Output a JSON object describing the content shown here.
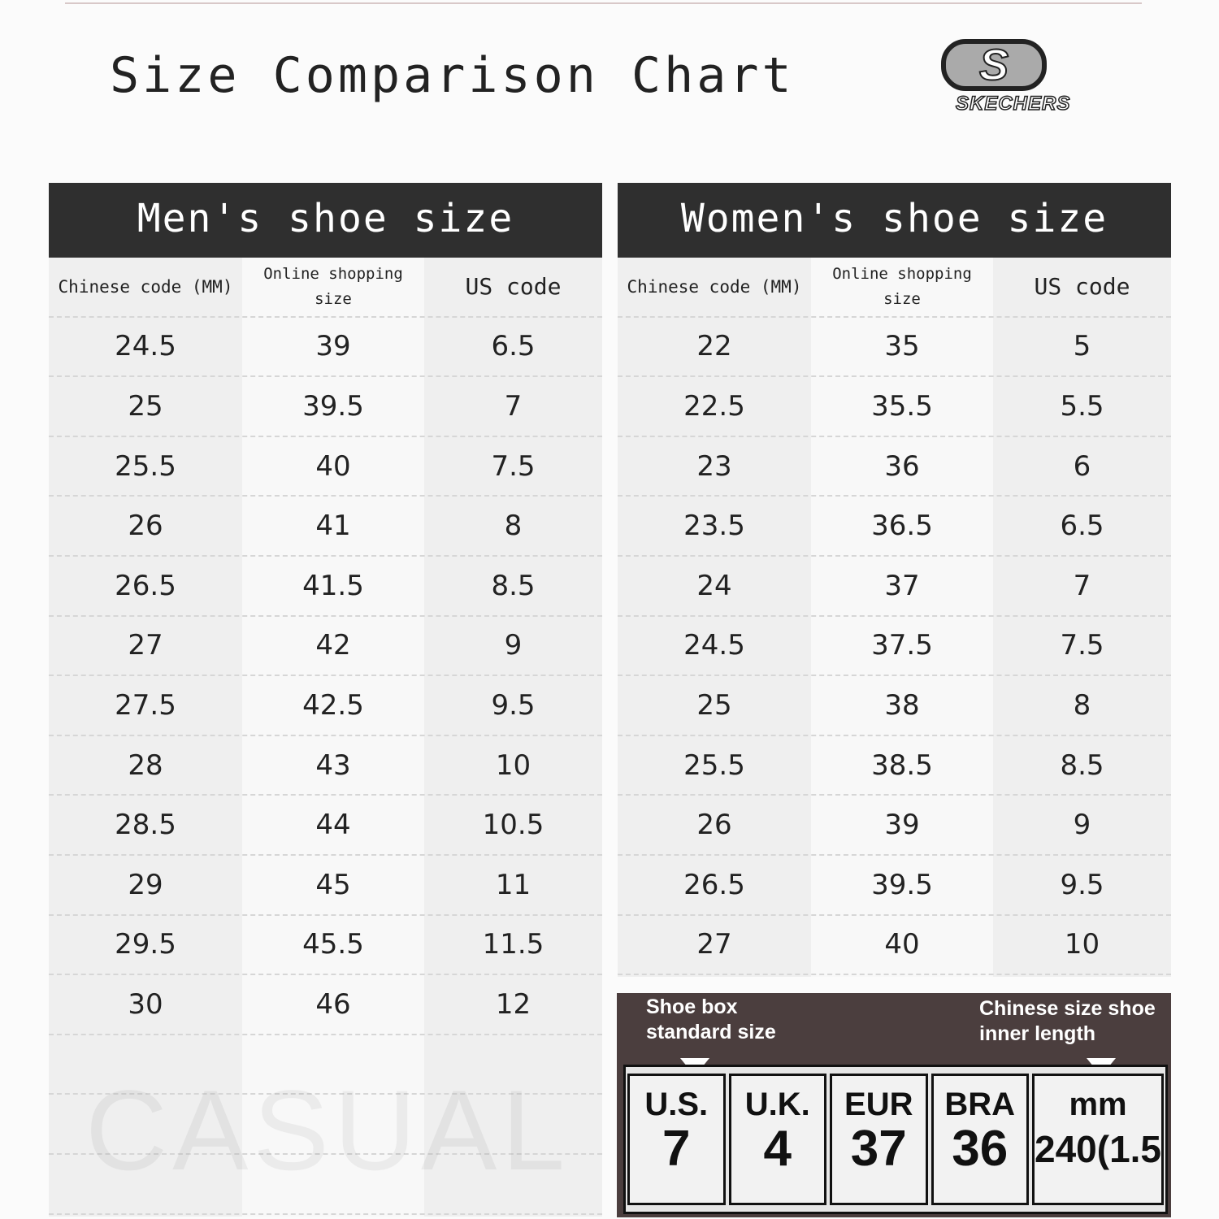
{
  "title": "Size Comparison Chart",
  "logo": {
    "mark": "S",
    "wordmark": "SKECHERS"
  },
  "columns": [
    "Chinese code (MM)",
    "Online shopping size",
    "US code"
  ],
  "men": {
    "heading": "Men's shoe size",
    "rows": [
      [
        "24.5",
        "39",
        "6.5"
      ],
      [
        "25",
        "39.5",
        "7"
      ],
      [
        "25.5",
        "40",
        "7.5"
      ],
      [
        "26",
        "41",
        "8"
      ],
      [
        "26.5",
        "41.5",
        "8.5"
      ],
      [
        "27",
        "42",
        "9"
      ],
      [
        "27.5",
        "42.5",
        "9.5"
      ],
      [
        "28",
        "43",
        "10"
      ],
      [
        "28.5",
        "44",
        "10.5"
      ],
      [
        "29",
        "45",
        "11"
      ],
      [
        "29.5",
        "45.5",
        "11.5"
      ],
      [
        "30",
        "46",
        "12"
      ]
    ]
  },
  "women": {
    "heading": "Women's shoe size",
    "rows": [
      [
        "22",
        "35",
        "5"
      ],
      [
        "22.5",
        "35.5",
        "5.5"
      ],
      [
        "23",
        "36",
        "6"
      ],
      [
        "23.5",
        "36.5",
        "6.5"
      ],
      [
        "24",
        "37",
        "7"
      ],
      [
        "24.5",
        "37.5",
        "7.5"
      ],
      [
        "25",
        "38",
        "8"
      ],
      [
        "25.5",
        "38.5",
        "8.5"
      ],
      [
        "26",
        "39",
        "9"
      ],
      [
        "26.5",
        "39.5",
        "9.5"
      ],
      [
        "27",
        "40",
        "10"
      ]
    ]
  },
  "watermark": "CASUAL",
  "box_label": {
    "left": "Shoe box standard size",
    "right": "Chinese size shoe inner length",
    "cells": [
      {
        "k": "U.S.",
        "v": "7"
      },
      {
        "k": "U.K.",
        "v": "4"
      },
      {
        "k": "EUR",
        "v": "37"
      },
      {
        "k": "BRA",
        "v": "36"
      },
      {
        "k": "mm",
        "v": "240(1.5"
      }
    ]
  }
}
